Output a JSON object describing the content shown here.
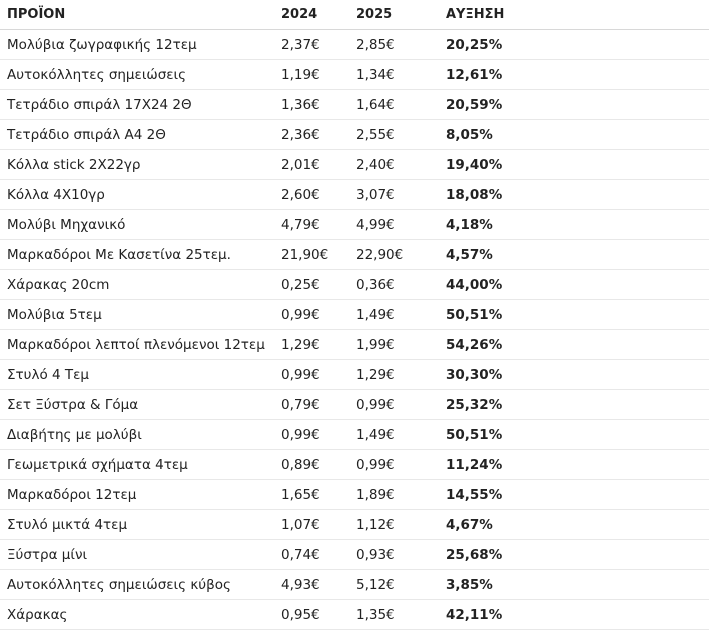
{
  "table": {
    "headers": {
      "product": "ΠΡΟΪΟΝ",
      "y2024": "2024",
      "y2025": "2025",
      "increase": "ΑΥΞΗΣΗ"
    },
    "rows": [
      {
        "product": "Μολύβια ζωγραφικής 12τεμ",
        "y2024": "2,37€",
        "y2025": "2,85€",
        "increase": "20,25%"
      },
      {
        "product": "Αυτοκόλλητες σημειώσεις",
        "y2024": "1,19€",
        "y2025": "1,34€",
        "increase": "12,61%"
      },
      {
        "product": "Τετράδιο σπιράλ 17Χ24 2Θ",
        "y2024": "1,36€",
        "y2025": "1,64€",
        "increase": "20,59%"
      },
      {
        "product": "Τετράδιο σπιράλ Α4 2Θ",
        "y2024": "2,36€",
        "y2025": "2,55€",
        "increase": "8,05%"
      },
      {
        "product": "Κόλλα stick 2Χ22γρ",
        "y2024": "2,01€",
        "y2025": "2,40€",
        "increase": "19,40%"
      },
      {
        "product": "Κόλλα 4Χ10γρ",
        "y2024": "2,60€",
        "y2025": "3,07€",
        "increase": "18,08%"
      },
      {
        "product": "Μολύβι Μηχανικό",
        "y2024": "4,79€",
        "y2025": "4,99€",
        "increase": "4,18%"
      },
      {
        "product": "Μαρκαδόροι Με Κασετίνα 25τεμ.",
        "y2024": "21,90€",
        "y2025": "22,90€",
        "increase": "4,57%"
      },
      {
        "product": "Χάρακας 20cm",
        "y2024": "0,25€",
        "y2025": "0,36€",
        "increase": "44,00%"
      },
      {
        "product": "Μολύβια 5τεμ",
        "y2024": "0,99€",
        "y2025": "1,49€",
        "increase": "50,51%"
      },
      {
        "product": "Μαρκαδόροι λεπτοί πλενόμενοι 12τεμ",
        "y2024": "1,29€",
        "y2025": "1,99€",
        "increase": "54,26%"
      },
      {
        "product": "Στυλό 4 Τεμ",
        "y2024": "0,99€",
        "y2025": "1,29€",
        "increase": "30,30%"
      },
      {
        "product": "Σετ Ξύστρα & Γόμα",
        "y2024": "0,79€",
        "y2025": "0,99€",
        "increase": "25,32%"
      },
      {
        "product": "Διαβήτης με μολύβι",
        "y2024": "0,99€",
        "y2025": "1,49€",
        "increase": "50,51%"
      },
      {
        "product": "Γεωμετρικά σχήματα  4τεμ",
        "y2024": "0,89€",
        "y2025": "0,99€",
        "increase": "11,24%"
      },
      {
        "product": "Μαρκαδόροι 12τεμ",
        "y2024": "1,65€",
        "y2025": "1,89€",
        "increase": "14,55%"
      },
      {
        "product": "Στυλό μικτά 4τεμ",
        "y2024": "1,07€",
        "y2025": "1,12€",
        "increase": "4,67%"
      },
      {
        "product": "Ξύστρα μίνι",
        "y2024": "0,74€",
        "y2025": "0,93€",
        "increase": "25,68%"
      },
      {
        "product": "Αυτοκόλλητες σημειώσεις κύβος",
        "y2024": "4,93€",
        "y2025": "5,12€",
        "increase": "3,85%"
      },
      {
        "product": "Χάρακας",
        "y2024": "0,95€",
        "y2025": "1,35€",
        "increase": "42,11%"
      }
    ]
  }
}
